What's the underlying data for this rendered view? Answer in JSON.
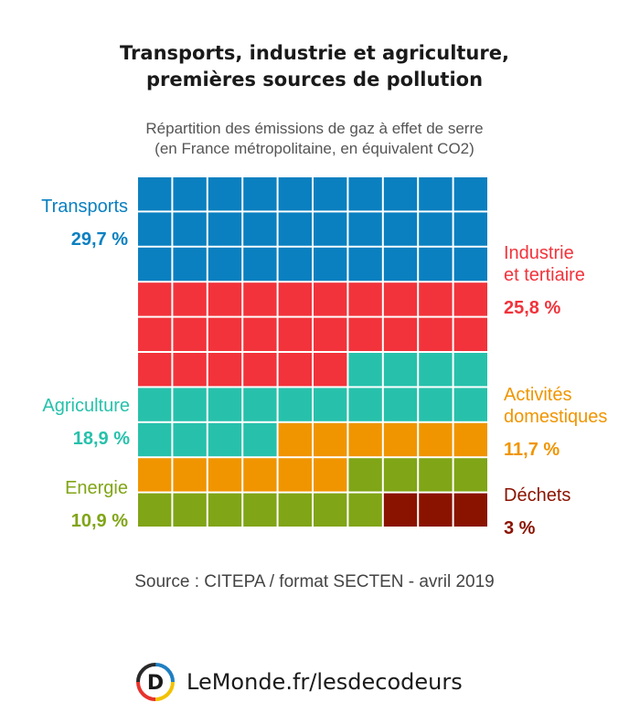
{
  "header": {
    "title_line1": "Transports, industrie et agriculture,",
    "title_line2": "premières sources de pollution",
    "subtitle_line1": "Répartition des émissions de gaz à effet de serre",
    "subtitle_line2": "(en France métropolitaine, en équivalent CO2)"
  },
  "chart_data": {
    "type": "waffle",
    "grid": {
      "columns": 10,
      "rows": 10,
      "fill_order": "row-major, left-to-right, top-to-bottom"
    },
    "categories": [
      {
        "label": "Transports",
        "label_line2": "",
        "value_text": "29,7 %",
        "value": 29.7,
        "squares": 30,
        "color": "#0a80c0"
      },
      {
        "label": "Industrie",
        "label_line2": "et tertiaire",
        "value_text": "25,8 %",
        "value": 25.8,
        "squares": 26,
        "color": "#f2333b"
      },
      {
        "label": "Agriculture",
        "label_line2": "",
        "value_text": "18,9 %",
        "value": 18.9,
        "squares": 18,
        "color": "#27c1ab"
      },
      {
        "label": "Activités",
        "label_line2": "domestiques",
        "value_text": "11,7 %",
        "value": 11.7,
        "squares": 12,
        "color": "#f09500"
      },
      {
        "label": "Energie",
        "label_line2": "",
        "value_text": "10,9 %",
        "value": 10.9,
        "squares": 11,
        "color": "#80a516"
      },
      {
        "label": "Déchets",
        "label_line2": "",
        "value_text": "3 %",
        "value": 3,
        "squares": 3,
        "color": "#8a1300"
      }
    ]
  },
  "footer": {
    "source": "Source : CITEPA / format SECTEN - avril 2019",
    "brand": "LeMonde.fr/lesdecodeurs",
    "logo_letter": "D"
  }
}
